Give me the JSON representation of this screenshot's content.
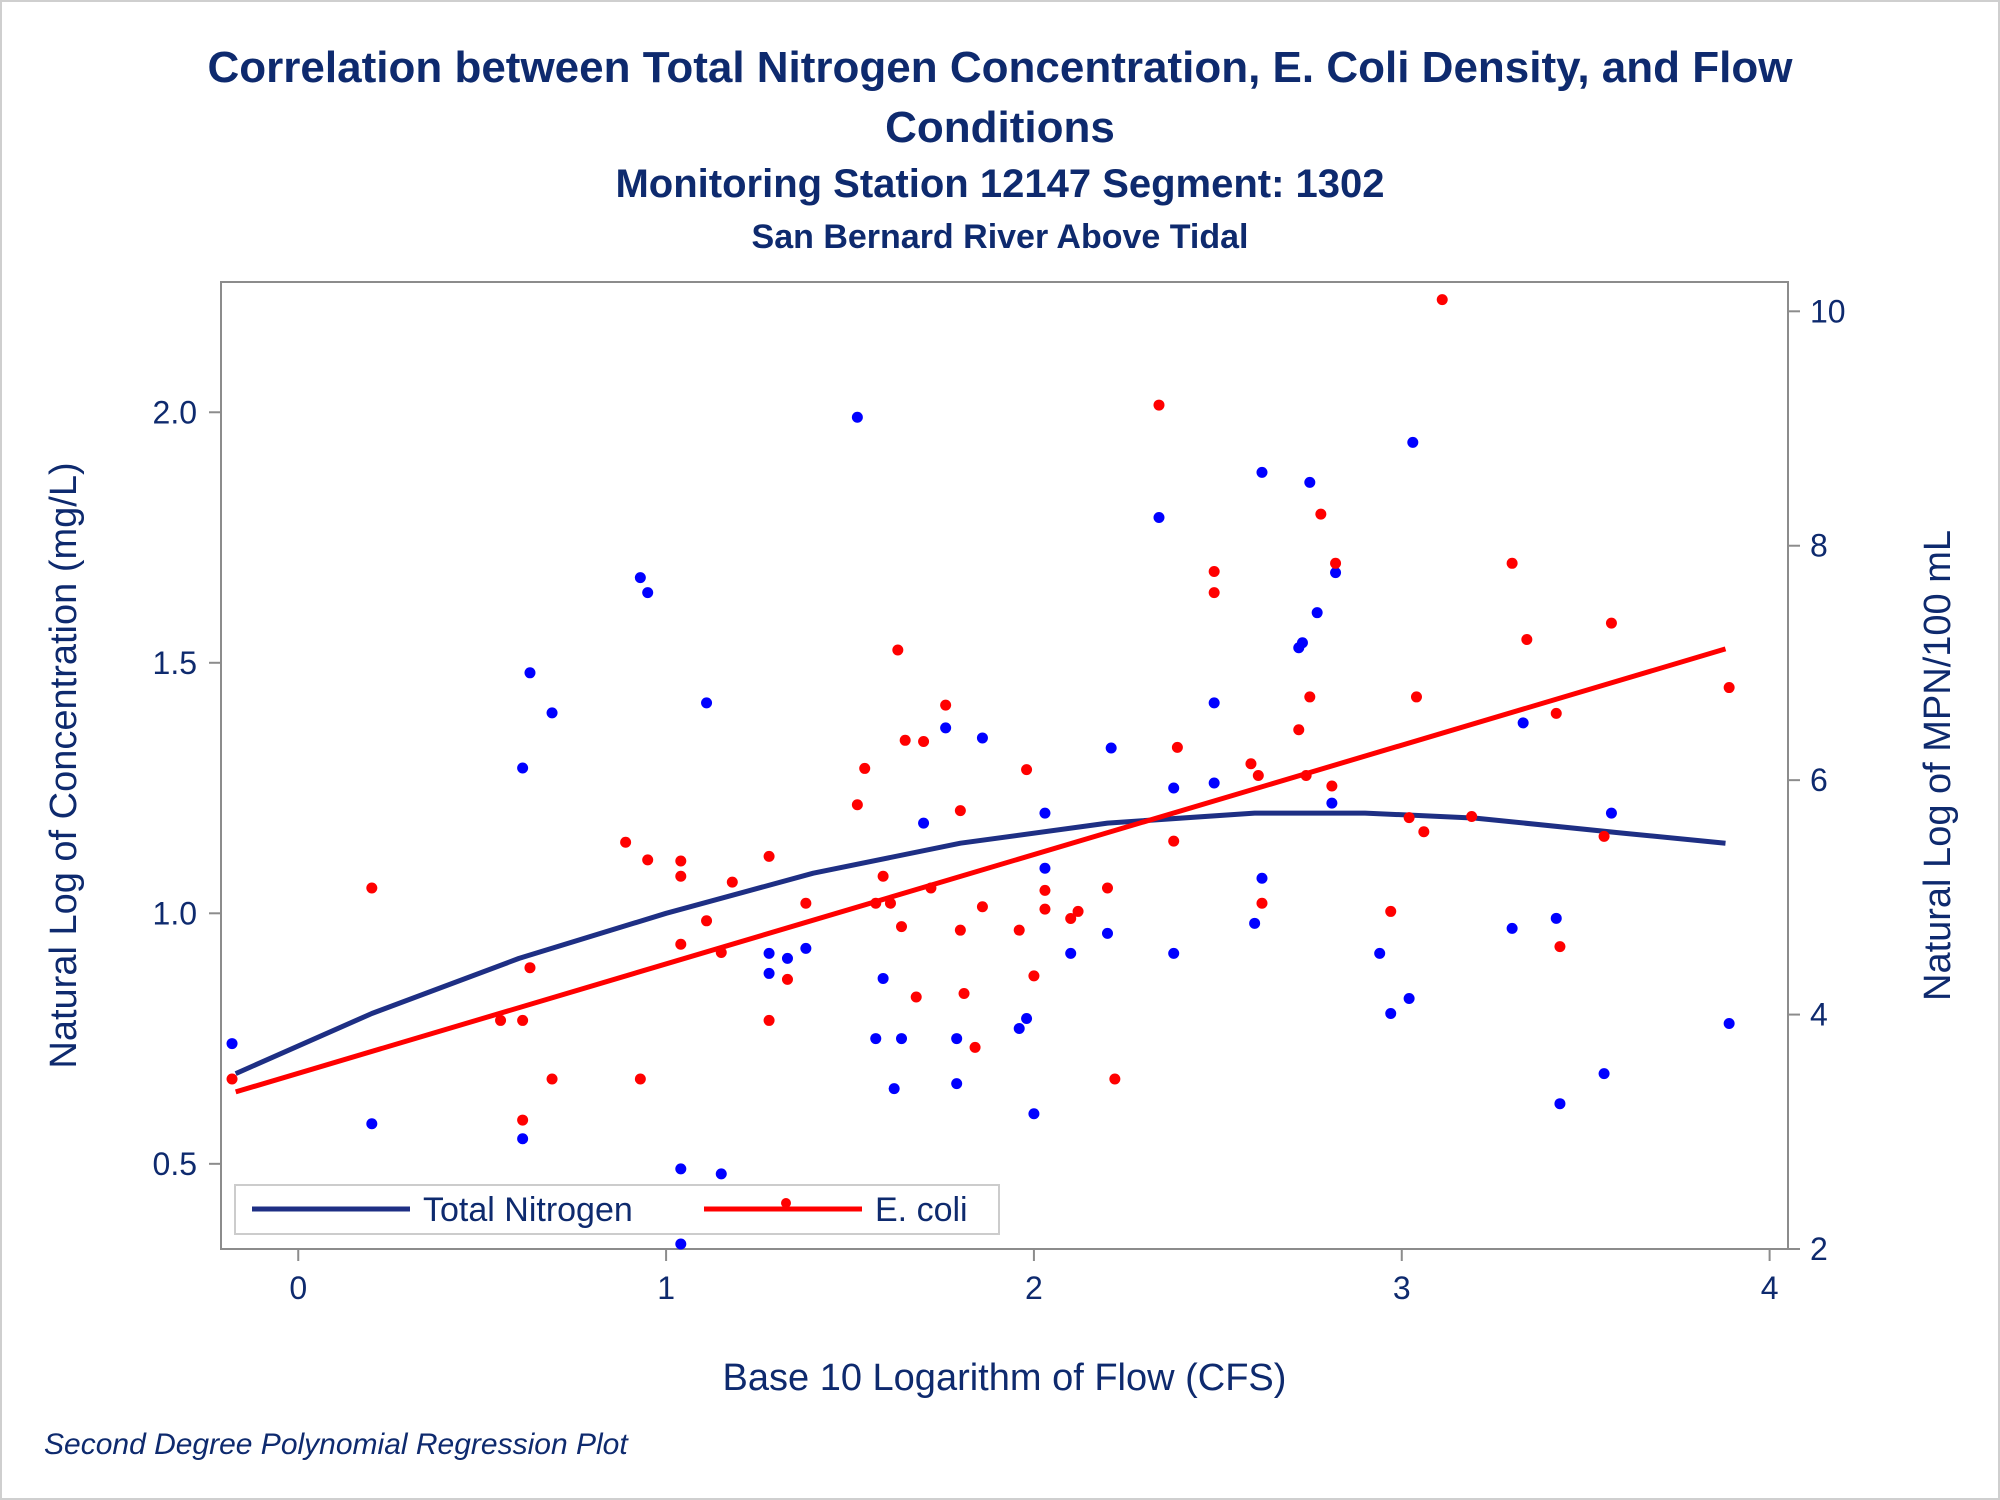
{
  "title_line1": "Correlation between Total Nitrogen Concentration, E. Coli Density, and Flow",
  "title_line2": "Conditions",
  "subtitle": "Monitoring Station 12147 Segment: 1302",
  "subtitle2": "San Bernard River Above Tidal",
  "footnote": "Second Degree Polynomial Regression Plot",
  "colors": {
    "nitrogen": "#1e2f84",
    "nitrogen_points": "#0000ff",
    "ecoli": "#ff0000",
    "text": "#0e2a6e"
  },
  "chart_data": {
    "type": "scatter",
    "title": "Correlation between Total Nitrogen Concentration, E. Coli Density, and Flow Conditions",
    "xlabel": "Base 10 Logarithm of Flow (CFS)",
    "ylabel_left": "Natural Log of Concentration (mg/L)",
    "ylabel_right": "Natural Log of MPN/100 mL",
    "xlim": [
      -0.21,
      4.05
    ],
    "ylim_left": [
      0.33,
      2.26
    ],
    "ylim_right": [
      2.0,
      10.25
    ],
    "xticks": [
      0,
      1,
      2,
      3,
      4
    ],
    "yticks_left": [
      0.5,
      1.0,
      1.5,
      2.0
    ],
    "yticks_left_labels": [
      "0.5",
      "1.0",
      "1.5",
      "2.0"
    ],
    "yticks_right": [
      2,
      4,
      6,
      8,
      10
    ],
    "legend": [
      "Total Nitrogen",
      "E. coli"
    ],
    "legend_position": "bottom-left inside",
    "series": [
      {
        "name": "Total Nitrogen",
        "axis": "left",
        "points": [
          [
            -0.18,
            0.74
          ],
          [
            0.2,
            0.58
          ],
          [
            0.61,
            1.29
          ],
          [
            0.61,
            0.55
          ],
          [
            0.63,
            1.48
          ],
          [
            0.69,
            1.4
          ],
          [
            0.93,
            1.67
          ],
          [
            0.95,
            1.64
          ],
          [
            1.04,
            0.49
          ],
          [
            1.04,
            0.34
          ],
          [
            1.11,
            1.42
          ],
          [
            1.15,
            0.48
          ],
          [
            1.28,
            0.92
          ],
          [
            1.28,
            0.88
          ],
          [
            1.33,
            0.91
          ],
          [
            1.38,
            0.93
          ],
          [
            1.52,
            1.99
          ],
          [
            1.57,
            0.75
          ],
          [
            1.59,
            0.87
          ],
          [
            1.62,
            0.65
          ],
          [
            1.64,
            0.75
          ],
          [
            1.7,
            1.18
          ],
          [
            1.76,
            1.37
          ],
          [
            1.79,
            0.66
          ],
          [
            1.79,
            0.75
          ],
          [
            1.86,
            1.35
          ],
          [
            1.96,
            0.77
          ],
          [
            1.98,
            0.79
          ],
          [
            2.0,
            0.6
          ],
          [
            2.03,
            1.2
          ],
          [
            2.03,
            1.09
          ],
          [
            2.1,
            0.92
          ],
          [
            2.2,
            0.96
          ],
          [
            2.21,
            1.33
          ],
          [
            2.34,
            1.79
          ],
          [
            2.38,
            0.92
          ],
          [
            2.38,
            1.25
          ],
          [
            2.49,
            1.42
          ],
          [
            2.49,
            1.26
          ],
          [
            2.6,
            0.98
          ],
          [
            2.62,
            1.88
          ],
          [
            2.62,
            1.07
          ],
          [
            2.72,
            1.53
          ],
          [
            2.73,
            1.54
          ],
          [
            2.75,
            1.86
          ],
          [
            2.77,
            1.6
          ],
          [
            2.81,
            1.22
          ],
          [
            2.82,
            1.68
          ],
          [
            2.94,
            0.92
          ],
          [
            2.97,
            0.8
          ],
          [
            3.02,
            0.83
          ],
          [
            3.03,
            1.94
          ],
          [
            3.3,
            0.97
          ],
          [
            3.33,
            1.38
          ],
          [
            3.42,
            0.99
          ],
          [
            3.43,
            0.62
          ],
          [
            3.55,
            0.68
          ],
          [
            3.57,
            1.2
          ],
          [
            3.89,
            0.78
          ]
        ],
        "fit": [
          [
            -0.17,
            0.68
          ],
          [
            0.2,
            0.8
          ],
          [
            0.6,
            0.91
          ],
          [
            1.0,
            1.0
          ],
          [
            1.4,
            1.08
          ],
          [
            1.8,
            1.14
          ],
          [
            2.2,
            1.18
          ],
          [
            2.6,
            1.2
          ],
          [
            2.9,
            1.2
          ],
          [
            3.2,
            1.19
          ],
          [
            3.6,
            1.16
          ],
          [
            3.88,
            1.14
          ]
        ]
      },
      {
        "name": "E. coli",
        "axis": "right",
        "points": [
          [
            -0.18,
            3.45
          ],
          [
            0.2,
            5.08
          ],
          [
            0.55,
            3.95
          ],
          [
            0.61,
            3.95
          ],
          [
            0.61,
            3.1
          ],
          [
            0.63,
            4.4
          ],
          [
            0.69,
            3.45
          ],
          [
            0.89,
            5.47
          ],
          [
            0.93,
            3.45
          ],
          [
            0.95,
            5.32
          ],
          [
            1.04,
            5.31
          ],
          [
            1.04,
            5.18
          ],
          [
            1.04,
            4.6
          ],
          [
            1.11,
            4.8
          ],
          [
            1.15,
            4.53
          ],
          [
            1.18,
            5.13
          ],
          [
            1.28,
            5.35
          ],
          [
            1.28,
            3.95
          ],
          [
            1.33,
            4.3
          ],
          [
            1.38,
            4.95
          ],
          [
            1.52,
            5.79
          ],
          [
            1.54,
            6.1
          ],
          [
            1.57,
            4.95
          ],
          [
            1.59,
            5.18
          ],
          [
            1.61,
            4.95
          ],
          [
            1.63,
            7.11
          ],
          [
            1.64,
            4.75
          ],
          [
            1.65,
            6.34
          ],
          [
            1.68,
            4.15
          ],
          [
            1.7,
            6.33
          ],
          [
            1.72,
            5.08
          ],
          [
            1.76,
            6.64
          ],
          [
            1.8,
            5.74
          ],
          [
            1.8,
            4.72
          ],
          [
            1.81,
            4.18
          ],
          [
            1.84,
            3.72
          ],
          [
            1.86,
            4.92
          ],
          [
            1.96,
            4.72
          ],
          [
            1.98,
            6.09
          ],
          [
            2.0,
            4.33
          ],
          [
            2.03,
            5.06
          ],
          [
            2.03,
            4.9
          ],
          [
            2.1,
            4.82
          ],
          [
            2.12,
            4.88
          ],
          [
            2.2,
            5.08
          ],
          [
            2.22,
            3.45
          ],
          [
            2.34,
            9.2
          ],
          [
            2.38,
            5.48
          ],
          [
            2.39,
            6.28
          ],
          [
            2.49,
            7.78
          ],
          [
            2.49,
            7.6
          ],
          [
            2.59,
            6.14
          ],
          [
            2.61,
            6.04
          ],
          [
            2.62,
            4.95
          ],
          [
            2.72,
            6.43
          ],
          [
            2.74,
            6.04
          ],
          [
            2.75,
            6.71
          ],
          [
            2.78,
            8.27
          ],
          [
            2.81,
            5.95
          ],
          [
            2.82,
            7.85
          ],
          [
            2.97,
            4.88
          ],
          [
            3.02,
            5.68
          ],
          [
            3.04,
            6.71
          ],
          [
            3.06,
            5.56
          ],
          [
            3.11,
            10.1
          ],
          [
            3.19,
            5.69
          ],
          [
            3.3,
            7.85
          ],
          [
            3.34,
            7.2
          ],
          [
            3.42,
            6.57
          ],
          [
            3.43,
            4.58
          ],
          [
            3.55,
            5.52
          ],
          [
            3.57,
            7.34
          ],
          [
            3.89,
            6.79
          ]
        ],
        "fit": [
          [
            -0.17,
            3.34
          ],
          [
            3.88,
            7.12
          ]
        ]
      }
    ]
  }
}
